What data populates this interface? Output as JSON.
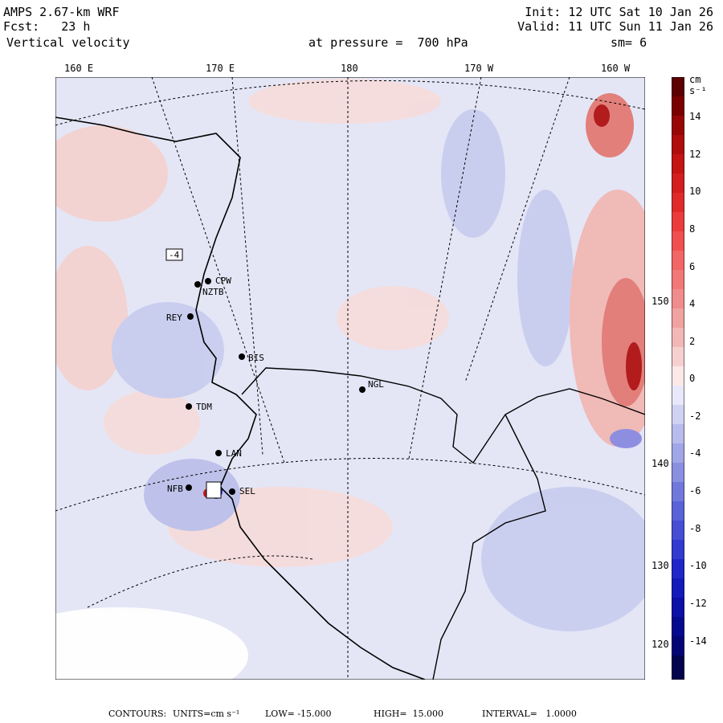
{
  "header": {
    "model": "AMPS 2.67-km WRF",
    "fcst": "Fcst:   23 h",
    "field": "Vertical velocity",
    "init": "Init: 12 UTC Sat 10 Jan 26",
    "valid": "Valid: 11 UTC Sun 11 Jan 26",
    "level": "at pressure =  700 hPa",
    "smooth": "sm= 6"
  },
  "longitudes": [
    "160 E",
    "170 E",
    "180",
    "170 W",
    "160 W"
  ],
  "latitudes": [
    "150 W",
    "140 W",
    "130 W",
    "120 W"
  ],
  "stations": [
    "CPW",
    "NZTB",
    "REY",
    "BIS",
    "NGL",
    "TDM",
    "LAN",
    "SEL",
    "NFB"
  ],
  "colorbar": {
    "units": "cm s⁻¹",
    "labels": [
      "14",
      "12",
      "10",
      "8",
      "6",
      "4",
      "2",
      "0",
      "-2",
      "-4",
      "-6",
      "-8",
      "-10",
      "-12",
      "-14"
    ]
  },
  "footer": {
    "contours": "CONTOURS:",
    "units": "UNITS=cm s⁻¹",
    "low": "LOW= -15.000",
    "high": "HIGH=  15.000",
    "interval": "INTERVAL=   1.0000"
  },
  "colors": {
    "land_line": "#000000",
    "warm": "#f3c4c1",
    "cool": "#c9cdee",
    "strong_warm": "#c21010",
    "strong_cool": "#1c1cc4"
  }
}
